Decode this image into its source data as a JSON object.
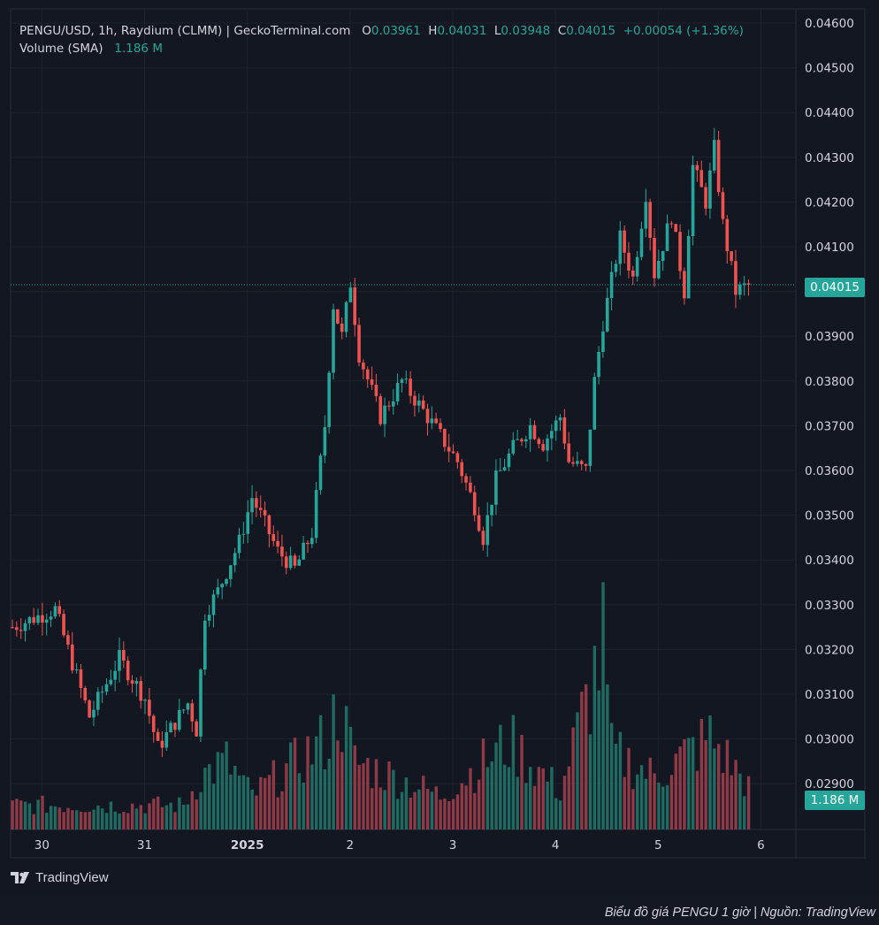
{
  "legend": {
    "symbol": "PENGU/USD, 1h, Raydium (CLMM) | GeckoTerminal.com",
    "o_label": "O",
    "o_value": "0.03961",
    "h_label": "H",
    "h_value": "0.04031",
    "l_label": "L",
    "l_value": "0.03948",
    "c_label": "C",
    "c_value": "0.04015",
    "change": "+0.00054 (+1.36%)",
    "volume_label": "Volume (SMA)",
    "volume_value": "1.186 M"
  },
  "price_tag": "0.04015",
  "volume_tag": "1.186 M",
  "branding": {
    "logo_text": "TradingView",
    "logo_mark": "17"
  },
  "caption": "Biểu đồ giá PENGU 1 giờ | Nguồn: TradingView",
  "colors": {
    "up": "#26a69a",
    "down": "#ef5350",
    "up_volume": "#1f6b62",
    "down_volume": "#8e3a47",
    "background": "#131722",
    "grid": "#1e222d",
    "text": "#d1d4dc"
  },
  "chart_data": {
    "type": "candlestick",
    "title": "PENGU/USD, 1h, Raydium (CLMM) | GeckoTerminal.com",
    "y_ticks": [
      "0.04600",
      "0.04500",
      "0.04400",
      "0.04300",
      "0.04200",
      "0.04100",
      "0.04000",
      "0.03900",
      "0.03800",
      "0.03700",
      "0.03600",
      "0.03500",
      "0.03400",
      "0.03300",
      "0.03200",
      "0.03100",
      "0.03000",
      "0.02900"
    ],
    "ylim": [
      0.0285,
      0.0462
    ],
    "x_ticks": [
      {
        "label": "30",
        "hour": 4,
        "bold": false
      },
      {
        "label": "31",
        "hour": 28,
        "bold": false
      },
      {
        "label": "2025",
        "hour": 52,
        "bold": true
      },
      {
        "label": "2",
        "hour": 76,
        "bold": false
      },
      {
        "label": "3",
        "hour": 100,
        "bold": false
      },
      {
        "label": "4",
        "hour": 124,
        "bold": false
      },
      {
        "label": "5",
        "hour": 148,
        "bold": false
      },
      {
        "label": "6",
        "hour": 172,
        "bold": false
      }
    ],
    "last_price": 0.04015,
    "volume_max_label": "1.186 M",
    "key_points": [
      {
        "hour": 0,
        "close": 0.0325
      },
      {
        "hour": 10,
        "close": 0.0329
      },
      {
        "hour": 18,
        "close": 0.0305
      },
      {
        "hour": 25,
        "close": 0.0318
      },
      {
        "hour": 31,
        "close": 0.0309
      },
      {
        "hour": 34,
        "close": 0.0298
      },
      {
        "hour": 41,
        "close": 0.0308
      },
      {
        "hour": 43,
        "close": 0.0302
      },
      {
        "hour": 45,
        "close": 0.0328
      },
      {
        "hour": 48,
        "close": 0.0333
      },
      {
        "hour": 53,
        "close": 0.0344
      },
      {
        "hour": 56,
        "close": 0.0354
      },
      {
        "hour": 62,
        "close": 0.0342
      },
      {
        "hour": 66,
        "close": 0.0338
      },
      {
        "hour": 70,
        "close": 0.0346
      },
      {
        "hour": 73,
        "close": 0.037
      },
      {
        "hour": 75,
        "close": 0.0397
      },
      {
        "hour": 77,
        "close": 0.039
      },
      {
        "hour": 79,
        "close": 0.0402
      },
      {
        "hour": 81,
        "close": 0.0386
      },
      {
        "hour": 86,
        "close": 0.0372
      },
      {
        "hour": 91,
        "close": 0.038
      },
      {
        "hour": 97,
        "close": 0.0372
      },
      {
        "hour": 104,
        "close": 0.0362
      },
      {
        "hour": 108,
        "close": 0.0352
      },
      {
        "hour": 110,
        "close": 0.0345
      },
      {
        "hour": 113,
        "close": 0.0358
      },
      {
        "hour": 117,
        "close": 0.0365
      },
      {
        "hour": 121,
        "close": 0.037
      },
      {
        "hour": 124,
        "close": 0.0366
      },
      {
        "hour": 128,
        "close": 0.0372
      },
      {
        "hour": 130,
        "close": 0.0362
      },
      {
        "hour": 134,
        "close": 0.036
      },
      {
        "hour": 136,
        "close": 0.038
      },
      {
        "hour": 138,
        "close": 0.0393
      },
      {
        "hour": 142,
        "close": 0.0412
      },
      {
        "hour": 145,
        "close": 0.0403
      },
      {
        "hour": 148,
        "close": 0.0422
      },
      {
        "hour": 150,
        "close": 0.0404
      },
      {
        "hour": 154,
        "close": 0.0417
      },
      {
        "hour": 157,
        "close": 0.04
      },
      {
        "hour": 159,
        "close": 0.0428
      },
      {
        "hour": 162,
        "close": 0.042
      },
      {
        "hour": 164,
        "close": 0.0432
      },
      {
        "hour": 166,
        "close": 0.0415
      },
      {
        "hour": 169,
        "close": 0.04
      },
      {
        "hour": 172,
        "close": 0.04015
      }
    ],
    "volume_key_points": [
      {
        "hour": 0,
        "volume": 0.25
      },
      {
        "hour": 40,
        "volume": 0.25
      },
      {
        "hour": 44,
        "volume": 0.55
      },
      {
        "hour": 50,
        "volume": 0.7
      },
      {
        "hour": 56,
        "volume": 0.35
      },
      {
        "hour": 74,
        "volume": 0.95
      },
      {
        "hour": 76,
        "volume": 1.3
      },
      {
        "hour": 80,
        "volume": 0.7
      },
      {
        "hour": 100,
        "volume": 0.35
      },
      {
        "hour": 116,
        "volume": 0.9
      },
      {
        "hour": 128,
        "volume": 0.4
      },
      {
        "hour": 138,
        "volume": 1.9
      },
      {
        "hour": 140,
        "volume": 0.8
      },
      {
        "hour": 150,
        "volume": 0.55
      },
      {
        "hour": 163,
        "volume": 0.95
      },
      {
        "hour": 172,
        "volume": 0.45
      }
    ]
  }
}
